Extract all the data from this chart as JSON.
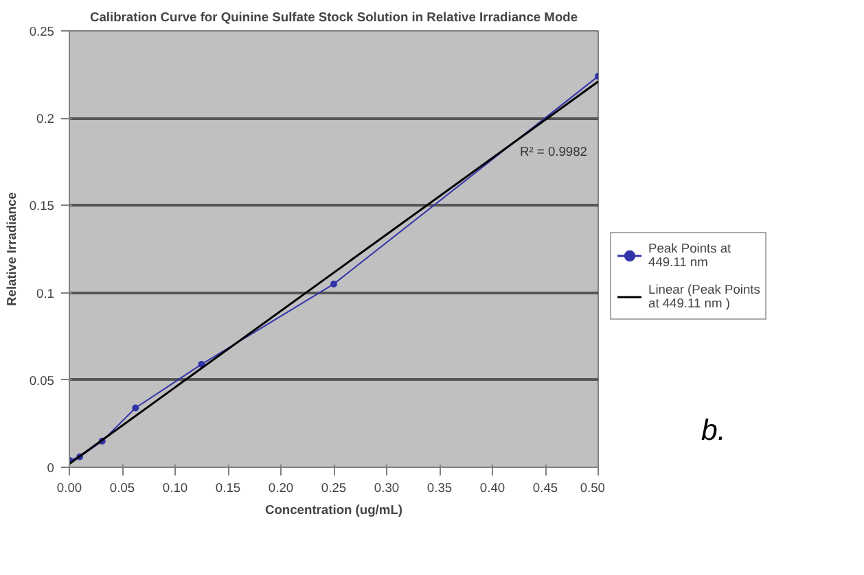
{
  "chart_data": {
    "type": "line",
    "title": "Calibration Curve for Quinine Sulfate Stock Solution in Relative Irradiance Mode",
    "xlabel": "Concentration (ug/mL)",
    "ylabel": "Relative Irradiance",
    "x": [
      0,
      0.0098,
      0.031,
      0.0625,
      0.125,
      0.25,
      0.5
    ],
    "series": [
      {
        "name": "Peak Points at 449.11 nm",
        "color": "#3333aa",
        "values": [
          0.004,
          0.006,
          0.015,
          0.034,
          0.059,
          0.105,
          0.224
        ],
        "marker": "circle"
      },
      {
        "name": "Linear (Peak Points at 449.11 nm )",
        "color": "#000000",
        "x": [
          0,
          0.5
        ],
        "values": [
          0.002,
          0.221
        ],
        "marker": "none"
      }
    ],
    "xlim": [
      0,
      0.5
    ],
    "ylim": [
      0,
      0.25
    ],
    "xticks": [
      {
        "value": 0,
        "label": "0.00"
      },
      0.05,
      {
        "value": 0.1,
        "label": "0.10"
      },
      0.15,
      {
        "value": 0.2,
        "label": "0.20"
      },
      0.25,
      {
        "value": 0.3,
        "label": "0.30"
      },
      0.35,
      {
        "value": 0.4,
        "label": "0.40"
      },
      0.45,
      {
        "value": 0.5,
        "label": "0.50"
      }
    ],
    "yticks": [
      0,
      0.05,
      0.1,
      0.15,
      0.2,
      0.25
    ],
    "grid": "y",
    "legend": "right",
    "line_style": "solid",
    "annotations": [
      "R² = 0.9982",
      "b."
    ]
  }
}
